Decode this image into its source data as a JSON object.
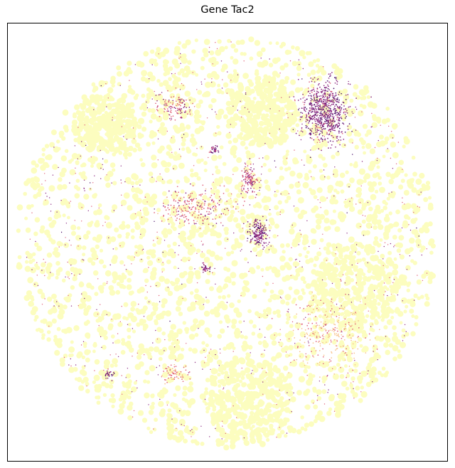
{
  "chart_data": {
    "type": "scatter",
    "title": "Gene Tac2",
    "xlabel": "",
    "ylabel": "",
    "axes_ticks": "none",
    "grid": false,
    "legend": "none",
    "colormap": "magma-reversed",
    "colors": {
      "low": "#fcfdbf",
      "mid_low": "#f7c28a",
      "mid": "#e0627a",
      "mid_high": "#8c2981",
      "high": "#4a126b",
      "frame": "#000000"
    },
    "tissue_regions": [
      {
        "name": "tissue-main",
        "cx": 0.5,
        "cy": 0.5,
        "r": 0.48
      },
      {
        "name": "tissue-top-left-lobe",
        "cx": 0.22,
        "cy": 0.23,
        "r": 0.07
      },
      {
        "name": "tissue-top-center-lobe",
        "cx": 0.58,
        "cy": 0.2,
        "r": 0.08
      },
      {
        "name": "tissue-right-lobe",
        "cx": 0.79,
        "cy": 0.6,
        "r": 0.1
      },
      {
        "name": "tissue-bottom-lobe",
        "cx": 0.55,
        "cy": 0.86,
        "r": 0.1
      }
    ],
    "expression_hotspots": [
      {
        "name": "hotspot-top-right",
        "cx": 0.72,
        "cy": 0.2,
        "rx": 0.05,
        "ry": 0.07,
        "level": 0.95,
        "count": 700
      },
      {
        "name": "hotspot-center",
        "cx": 0.57,
        "cy": 0.48,
        "rx": 0.02,
        "ry": 0.03,
        "level": 0.95,
        "count": 180
      },
      {
        "name": "hotspot-upper-mid",
        "cx": 0.55,
        "cy": 0.36,
        "rx": 0.02,
        "ry": 0.03,
        "level": 0.8,
        "count": 120
      },
      {
        "name": "hotspot-mid-left",
        "cx": 0.42,
        "cy": 0.42,
        "rx": 0.08,
        "ry": 0.04,
        "level": 0.7,
        "count": 220
      },
      {
        "name": "hotspot-top-left",
        "cx": 0.38,
        "cy": 0.19,
        "rx": 0.04,
        "ry": 0.03,
        "level": 0.75,
        "count": 110
      },
      {
        "name": "hotspot-left-center",
        "cx": 0.45,
        "cy": 0.56,
        "rx": 0.01,
        "ry": 0.01,
        "level": 0.95,
        "count": 35
      },
      {
        "name": "hotspot-bottom-left",
        "cx": 0.23,
        "cy": 0.8,
        "rx": 0.01,
        "ry": 0.01,
        "level": 0.95,
        "count": 25
      },
      {
        "name": "hotspot-bottom-center",
        "cx": 0.38,
        "cy": 0.8,
        "rx": 0.03,
        "ry": 0.02,
        "level": 0.6,
        "count": 70
      },
      {
        "name": "hotspot-right-lower",
        "cx": 0.73,
        "cy": 0.71,
        "rx": 0.09,
        "ry": 0.08,
        "level": 0.5,
        "count": 260
      },
      {
        "name": "hotspot-top-mid",
        "cx": 0.47,
        "cy": 0.29,
        "rx": 0.01,
        "ry": 0.01,
        "level": 0.9,
        "count": 30
      }
    ]
  }
}
